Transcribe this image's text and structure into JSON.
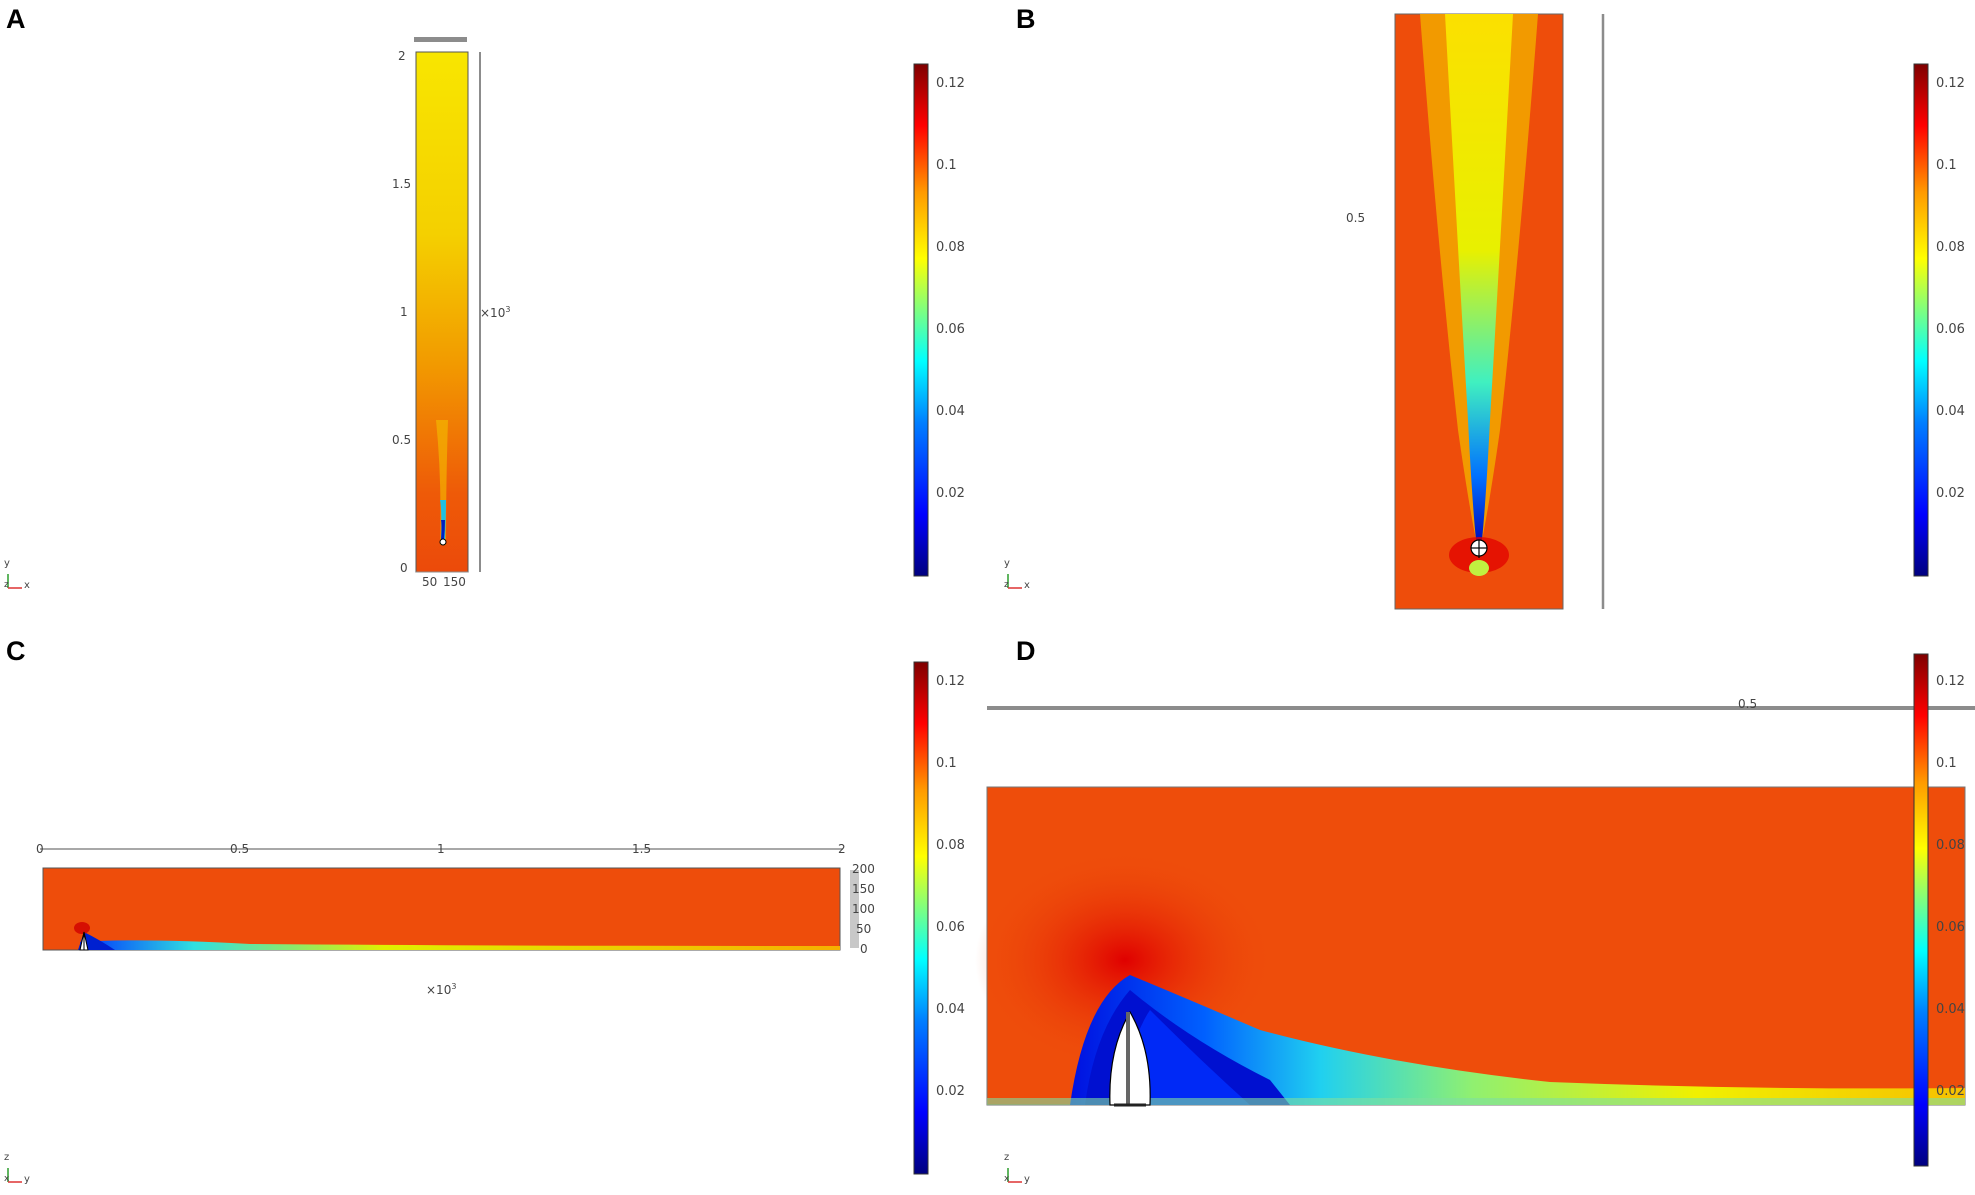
{
  "panels": {
    "A": {
      "label": "A",
      "yticks": [
        "2",
        "1.5",
        "1",
        "0.5",
        "0"
      ],
      "xticks": [
        "50",
        "150"
      ],
      "exponent": "×10",
      "exponent_sup": "3",
      "triad": {
        "up": "y",
        "right": "x",
        "corner": "z"
      },
      "colorbar": {
        "ticks": [
          "0.12",
          "0.1",
          "0.08",
          "0.06",
          "0.04",
          "0.02"
        ]
      }
    },
    "B": {
      "label": "B",
      "scale_label": "0.5",
      "triad": {
        "up": "y",
        "right": "x",
        "corner": "z"
      },
      "colorbar": {
        "ticks": [
          "0.12",
          "0.1",
          "0.08",
          "0.06",
          "0.04",
          "0.02"
        ]
      }
    },
    "C": {
      "label": "C",
      "xticks": [
        "0",
        "0.5",
        "1",
        "1.5",
        "2"
      ],
      "zticks": [
        "200",
        "150",
        "100",
        "50",
        "0"
      ],
      "exponent": "×10",
      "exponent_sup": "3",
      "triad": {
        "up": "z",
        "right": "y",
        "corner": "x"
      },
      "colorbar": {
        "ticks": [
          "0.12",
          "0.1",
          "0.08",
          "0.06",
          "0.04",
          "0.02"
        ]
      }
    },
    "D": {
      "label": "D",
      "scale_label": "0.5",
      "triad": {
        "up": "z",
        "right": "y",
        "corner": "x"
      },
      "colorbar": {
        "ticks": [
          "0.12",
          "0.1",
          "0.08",
          "0.06",
          "0.04",
          "0.02"
        ]
      }
    }
  },
  "colormap": [
    "#00007f",
    "#0000ff",
    "#007fff",
    "#00ffff",
    "#7fff7f",
    "#ffff00",
    "#ff7f00",
    "#ff0000",
    "#7f0000"
  ],
  "colors": {
    "background_field": "#ee4d0b",
    "axis_gray": "#8c8c8c"
  }
}
